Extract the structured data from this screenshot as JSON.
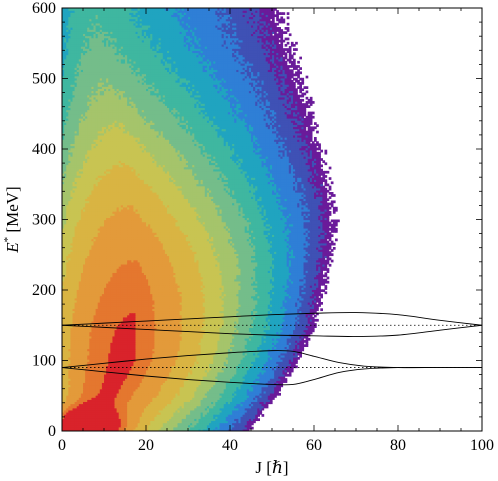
{
  "chart_data": {
    "type": "heatmap",
    "title": "",
    "xlabel": "J [ℏ]",
    "ylabel_prefix": "E",
    "ylabel_sup": "*",
    "ylabel_suffix": " [MeV]",
    "xlim": [
      0,
      100
    ],
    "ylim": [
      0,
      600
    ],
    "xticks": [
      0,
      20,
      40,
      60,
      80,
      100
    ],
    "yticks": [
      0,
      100,
      200,
      300,
      400,
      500,
      600
    ],
    "grid": false,
    "legend": "none",
    "colormap": [
      "#6a1b9a",
      "#3f51b5",
      "#2f7fd6",
      "#20a4c0",
      "#3fb7a0",
      "#74bd8a",
      "#a5c46b",
      "#c8c452",
      "#d9b443",
      "#e39a3a",
      "#e4772f",
      "#d9232b"
    ],
    "contour_levels": [
      0.03,
      0.08,
      0.15,
      0.23,
      0.31,
      0.39,
      0.47,
      0.55,
      0.64,
      0.75,
      0.88,
      0.97
    ],
    "density_peak": {
      "J": 5,
      "E": 5
    },
    "ridge": [
      {
        "E": 0,
        "J_peak": 4,
        "J_edge": 45
      },
      {
        "E": 50,
        "J_peak": 12,
        "J_edge": 52
      },
      {
        "E": 100,
        "J_peak": 16,
        "J_edge": 57
      },
      {
        "E": 150,
        "J_peak": 17,
        "J_edge": 61
      },
      {
        "E": 200,
        "J_peak": 18,
        "J_edge": 63
      },
      {
        "E": 250,
        "J_peak": 18,
        "J_edge": 65
      },
      {
        "E": 300,
        "J_peak": 17,
        "J_edge": 66
      },
      {
        "E": 350,
        "J_peak": 16,
        "J_edge": 65
      },
      {
        "E": 400,
        "J_peak": 15,
        "J_edge": 63
      },
      {
        "E": 450,
        "J_peak": 13,
        "J_edge": 61
      },
      {
        "E": 500,
        "J_peak": 11,
        "J_edge": 59
      },
      {
        "E": 550,
        "J_peak": 9,
        "J_edge": 56
      },
      {
        "E": 600,
        "J_peak": 8,
        "J_edge": 54
      }
    ],
    "overlay_dotted_lines": [
      {
        "E": 150
      },
      {
        "E": 90
      }
    ],
    "overlay_curves": [
      {
        "points": [
          [
            0,
            150
          ],
          [
            10,
            153
          ],
          [
            20,
            156
          ],
          [
            30,
            159
          ],
          [
            40,
            162
          ],
          [
            50,
            165
          ],
          [
            60,
            167
          ],
          [
            70,
            168
          ],
          [
            80,
            165
          ],
          [
            90,
            157
          ],
          [
            100,
            150
          ]
        ]
      },
      {
        "points": [
          [
            0,
            150
          ],
          [
            10,
            147
          ],
          [
            20,
            144
          ],
          [
            30,
            141
          ],
          [
            40,
            138
          ],
          [
            50,
            136
          ],
          [
            60,
            135
          ],
          [
            70,
            134
          ],
          [
            80,
            136
          ],
          [
            90,
            143
          ],
          [
            100,
            150
          ]
        ]
      },
      {
        "points": [
          [
            0,
            90
          ],
          [
            10,
            96
          ],
          [
            20,
            102
          ],
          [
            30,
            107
          ],
          [
            40,
            111
          ],
          [
            50,
            114
          ],
          [
            55,
            113
          ],
          [
            60,
            106
          ],
          [
            66,
            97
          ],
          [
            72,
            92
          ],
          [
            80,
            90
          ],
          [
            90,
            90
          ],
          [
            100,
            90
          ]
        ]
      },
      {
        "points": [
          [
            0,
            90
          ],
          [
            10,
            84
          ],
          [
            20,
            78
          ],
          [
            30,
            73
          ],
          [
            40,
            69
          ],
          [
            50,
            66
          ],
          [
            55,
            66
          ],
          [
            60,
            73
          ],
          [
            66,
            83
          ],
          [
            72,
            88
          ],
          [
            80,
            90
          ],
          [
            90,
            90
          ],
          [
            100,
            90
          ]
        ]
      }
    ]
  }
}
